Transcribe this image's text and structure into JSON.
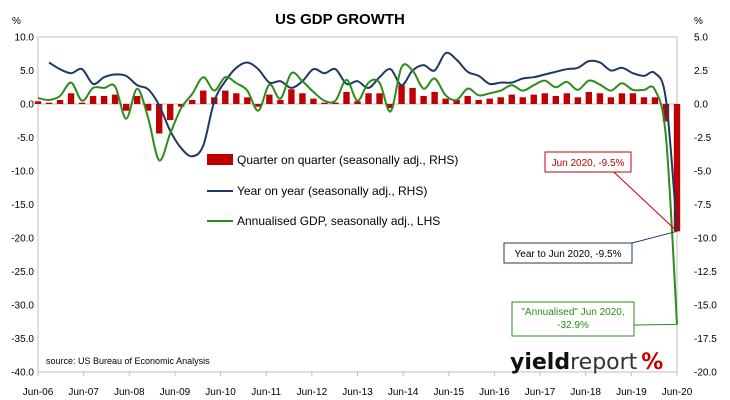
{
  "chart_data": {
    "type": "bar+line",
    "title": "US GDP GROWTH",
    "left_unit": "%",
    "right_unit": "%",
    "left_axis": {
      "min": -40,
      "max": 10,
      "step": 5,
      "ticks": [
        "10.0",
        "5.0",
        "0.0",
        "-5.0",
        "-10.0",
        "-15.0",
        "-20.0",
        "-25.0",
        "-30.0",
        "-35.0",
        "-40.0"
      ]
    },
    "right_axis": {
      "min": -20,
      "max": 5,
      "step": 2.5,
      "ticks": [
        "5.0",
        "2.5",
        "0.0",
        "-2.5",
        "-5.0",
        "-7.5",
        "-10.0",
        "-12.5",
        "-15.0",
        "-17.5",
        "-20.0"
      ]
    },
    "x_start": 2006.417,
    "x_end": 2020.417,
    "x_ticks": [
      {
        "label": "Jun-06",
        "x": 2006.417
      },
      {
        "label": "Jun-07",
        "x": 2007.417
      },
      {
        "label": "Jun-08",
        "x": 2008.417
      },
      {
        "label": "Jun-09",
        "x": 2009.417
      },
      {
        "label": "Jun-10",
        "x": 2010.417
      },
      {
        "label": "Jun-11",
        "x": 2011.417
      },
      {
        "label": "Jun-12",
        "x": 2012.417
      },
      {
        "label": "Jun-13",
        "x": 2013.417
      },
      {
        "label": "Jun-14",
        "x": 2014.417
      },
      {
        "label": "Jun-15",
        "x": 2015.417
      },
      {
        "label": "Jun-16",
        "x": 2016.417
      },
      {
        "label": "Jun-17",
        "x": 2017.417
      },
      {
        "label": "Jun-18",
        "x": 2018.417
      },
      {
        "label": "Jun-19",
        "x": 2019.417
      },
      {
        "label": "Jun-20",
        "x": 2020.417
      }
    ],
    "series": [
      {
        "name": "Quarter on quarter (seasonally adj., RHS)",
        "type": "bar",
        "axis": "right",
        "color": "#c00000",
        "values": [
          0.2,
          0.1,
          0.3,
          0.8,
          0.1,
          0.6,
          0.6,
          0.7,
          -0.5,
          0.6,
          -0.5,
          -2.2,
          -1.2,
          -0.2,
          0.3,
          1.0,
          0.5,
          1.0,
          0.8,
          0.5,
          -0.2,
          0.7,
          0.3,
          1.1,
          0.8,
          0.4,
          0.1,
          0.1,
          0.9,
          0.2,
          0.8,
          0.8,
          -0.3,
          1.4,
          1.2,
          0.6,
          0.9,
          0.4,
          0.3,
          0.6,
          0.3,
          0.4,
          0.5,
          0.7,
          0.5,
          0.7,
          0.8,
          0.6,
          0.8,
          0.5,
          0.9,
          0.8,
          0.5,
          0.8,
          0.8,
          0.5,
          0.5,
          -1.3,
          -9.5
        ]
      },
      {
        "name": "Year on year (seasonally adj., RHS)",
        "type": "line",
        "axis": "right",
        "color": "#1f3864",
        "values": [
          3.1,
          2.6,
          2.3,
          2.6,
          1.5,
          2.0,
          2.2,
          2.1,
          1.4,
          1.1,
          -0.1,
          -2.0,
          -3.3,
          -3.9,
          -3.1,
          0.2,
          1.7,
          2.7,
          3.1,
          2.6,
          1.6,
          1.7,
          1.2,
          1.7,
          2.6,
          2.3,
          2.6,
          1.5,
          1.7,
          1.2,
          2.0,
          2.6,
          1.4,
          2.5,
          2.9,
          2.5,
          3.8,
          3.3,
          2.4,
          2.1,
          1.5,
          1.6,
          1.6,
          1.9,
          2.0,
          2.2,
          2.4,
          2.6,
          2.7,
          3.2,
          3.1,
          2.5,
          2.7,
          2.3,
          2.1,
          2.3,
          0.3,
          -9.5
        ]
      },
      {
        "name": "Annualised GDP, seasonally adj., LHS",
        "type": "line",
        "axis": "left",
        "color": "#2e8b1e",
        "values": [
          0.9,
          0.6,
          1.2,
          3.2,
          0.5,
          2.4,
          2.4,
          2.6,
          -2.2,
          2.3,
          -2.1,
          -8.4,
          -4.4,
          -0.6,
          1.5,
          4.0,
          2.0,
          4.0,
          3.1,
          2.0,
          -1.0,
          2.9,
          0.8,
          4.6,
          3.4,
          1.8,
          0.5,
          0.5,
          3.6,
          0.5,
          3.2,
          3.2,
          -1.1,
          5.5,
          5.0,
          2.3,
          3.8,
          1.3,
          0.6,
          2.3,
          1.3,
          1.6,
          2.0,
          2.8,
          2.0,
          2.8,
          3.5,
          2.5,
          3.3,
          2.1,
          3.5,
          2.9,
          2.0,
          3.1,
          2.1,
          2.1,
          2.1,
          -5.0,
          -32.9
        ]
      }
    ],
    "callouts": [
      {
        "text": "Jun 2020, -9.5%",
        "color": "#c00000",
        "series": "Quarter on quarter (seasonally adj., RHS)"
      },
      {
        "text": "Year to Jun 2020, -9.5%",
        "color": "#1f3864",
        "series": "Year on year (seasonally adj., RHS)"
      },
      {
        "text_lines": [
          "\"Annualised\" Jun 2020,",
          "-32.9%"
        ],
        "color": "#2e8b1e",
        "series": "Annualised GDP, seasonally adj., LHS"
      }
    ],
    "source": "source: US Bureau of Economic Analysis",
    "logo": {
      "word_bold": "yield",
      "word_light": "report",
      "symbol": "%"
    }
  }
}
